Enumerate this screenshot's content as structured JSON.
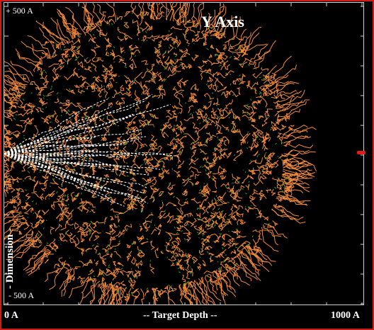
{
  "window": {
    "title": "Y Axis",
    "axis_labels": {
      "y_top": "+ 500 A",
      "y_bottom": "- 500 A",
      "y_label": "- Dimension -",
      "x_left": "0 A",
      "x_center": "-- Target Depth --",
      "x_right": "1000 A"
    }
  },
  "colors": {
    "frame": "#d01818",
    "cloud_orange": "#f08a3c",
    "cloud_green": "#3c9a28",
    "tracks": "#ffffff",
    "marker": "#e41b1b"
  }
}
